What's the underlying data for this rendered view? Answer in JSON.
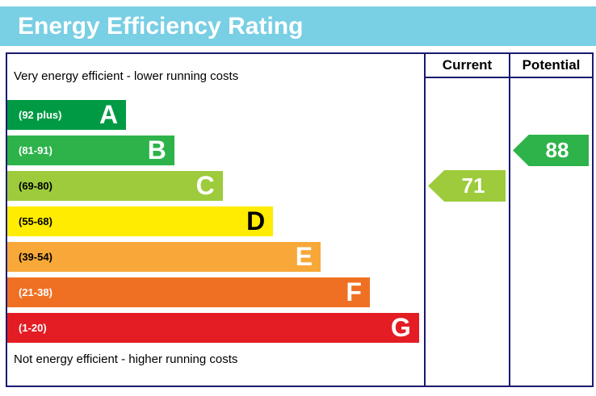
{
  "title": "Energy Efficiency Rating",
  "header": {
    "current": "Current",
    "potential": "Potential"
  },
  "notes": {
    "top": "Very energy efficient - lower running costs",
    "bottom": "Not energy efficient - higher running costs"
  },
  "bands": [
    {
      "letter": "A",
      "range": "(92 plus)",
      "color": "#009a44",
      "label_color": "#ffffff",
      "letter_color": "#ffffff",
      "width_pct": 28.5
    },
    {
      "letter": "B",
      "range": "(81-91)",
      "color": "#2db34a",
      "label_color": "#ffffff",
      "letter_color": "#ffffff",
      "width_pct": 40.1
    },
    {
      "letter": "C",
      "range": "(69-80)",
      "color": "#9dcb3c",
      "label_color": "#000000",
      "letter_color": "#ffffff",
      "width_pct": 51.7
    },
    {
      "letter": "D",
      "range": "(55-68)",
      "color": "#ffec00",
      "label_color": "#000000",
      "letter_color": "#000000",
      "width_pct": 63.8
    },
    {
      "letter": "E",
      "range": "(39-54)",
      "color": "#f7a839",
      "label_color": "#000000",
      "letter_color": "#ffffff",
      "width_pct": 75.2
    },
    {
      "letter": "F",
      "range": "(21-38)",
      "color": "#ef7022",
      "label_color": "#ffffff",
      "letter_color": "#ffffff",
      "width_pct": 87.0
    },
    {
      "letter": "G",
      "range": "(1-20)",
      "color": "#e31d23",
      "label_color": "#ffffff",
      "letter_color": "#ffffff",
      "width_pct": 98.8
    }
  ],
  "ratings": {
    "current": {
      "value": "71",
      "band": "C",
      "band_index": 2,
      "color": "#9dcb3c"
    },
    "potential": {
      "value": "88",
      "band": "B",
      "band_index": 1,
      "color": "#2db34a"
    }
  },
  "colors": {
    "title_bg": "#79cfe3",
    "title_text": "#ffffff",
    "border": "#191970"
  },
  "chart_data": {
    "type": "bar",
    "title": "Energy Efficiency Rating",
    "categories": [
      "A",
      "B",
      "C",
      "D",
      "E",
      "F",
      "G"
    ],
    "band_ranges": [
      "92 plus",
      "81-91",
      "69-80",
      "55-68",
      "39-54",
      "21-38",
      "1-20"
    ],
    "band_colors": [
      "#009a44",
      "#2db34a",
      "#9dcb3c",
      "#ffec00",
      "#f7a839",
      "#ef7022",
      "#e31d23"
    ],
    "values": [
      28.5,
      40.1,
      51.7,
      63.8,
      75.2,
      87.0,
      98.8
    ],
    "current": 71,
    "current_band": "C",
    "potential": 88,
    "potential_band": "B",
    "xlabel": "",
    "ylabel": "",
    "legend": [
      "Current",
      "Potential"
    ],
    "notes": [
      "Very energy efficient - lower running costs",
      "Not energy efficient - higher running costs"
    ]
  }
}
